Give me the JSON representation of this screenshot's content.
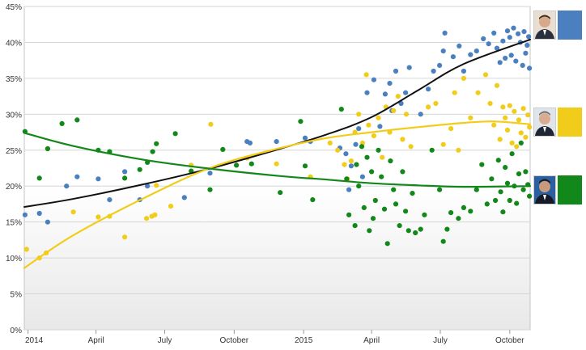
{
  "chart_data": {
    "type": "scatter",
    "title": "",
    "xlabel": "",
    "ylabel": "",
    "xlim": [
      "2013-12-27",
      "2015-10-28"
    ],
    "ylim": [
      0,
      45
    ],
    "y_ticks": [
      "0%",
      "5%",
      "10%",
      "15%",
      "20%",
      "25%",
      "30%",
      "35%",
      "40%",
      "45%"
    ],
    "x_ticks": [
      {
        "date": "2014-01-01",
        "label": "2014"
      },
      {
        "date": "2014-04-01",
        "label": "April"
      },
      {
        "date": "2014-07-01",
        "label": "July"
      },
      {
        "date": "2014-10-01",
        "label": "October"
      },
      {
        "date": "2015-01-01",
        "label": "2015"
      },
      {
        "date": "2015-04-01",
        "label": "April"
      },
      {
        "date": "2015-07-01",
        "label": "July"
      },
      {
        "date": "2015-10-01",
        "label": "October"
      }
    ],
    "grid": true,
    "legend_position": "right",
    "series": [
      {
        "color": "#4a7fc0",
        "icon": "candidate-portrait-icon",
        "trend": [
          [
            "2013-12-27",
            17.1
          ],
          [
            "2014-03-01",
            18.2
          ],
          [
            "2014-06-01",
            20.2
          ],
          [
            "2014-09-01",
            22.5
          ],
          [
            "2014-12-01",
            25.2
          ],
          [
            "2015-02-01",
            27.2
          ],
          [
            "2015-04-01",
            29.6
          ],
          [
            "2015-06-01",
            33.3
          ],
          [
            "2015-08-01",
            37.0
          ],
          [
            "2015-10-28",
            40.4
          ]
        ],
        "points": [
          [
            "2013-12-28",
            16
          ],
          [
            "2014-01-16",
            16.2
          ],
          [
            "2014-01-27",
            15
          ],
          [
            "2014-02-21",
            20
          ],
          [
            "2014-03-07",
            21.3
          ],
          [
            "2014-04-04",
            21
          ],
          [
            "2014-04-19",
            18.1
          ],
          [
            "2014-05-09",
            22
          ],
          [
            "2014-05-29",
            18.1
          ],
          [
            "2014-06-08",
            20
          ],
          [
            "2014-07-27",
            18.4
          ],
          [
            "2014-08-30",
            21.8
          ],
          [
            "2014-10-18",
            26.2
          ],
          [
            "2014-10-22",
            26
          ],
          [
            "2014-11-26",
            26.2
          ],
          [
            "2015-01-03",
            26.7
          ],
          [
            "2015-01-10",
            26.2
          ],
          [
            "2015-02-18",
            25.3
          ],
          [
            "2015-02-26",
            24.5
          ],
          [
            "2015-03-02",
            19.5
          ],
          [
            "2015-03-05",
            22.8
          ],
          [
            "2015-03-11",
            25.8
          ],
          [
            "2015-03-15",
            28
          ],
          [
            "2015-03-20",
            21.3
          ],
          [
            "2015-03-26",
            33
          ],
          [
            "2015-04-04",
            34.8
          ],
          [
            "2015-04-12",
            28.3
          ],
          [
            "2015-04-19",
            32.8
          ],
          [
            "2015-04-25",
            34.3
          ],
          [
            "2015-04-28",
            30.5
          ],
          [
            "2015-05-03",
            36
          ],
          [
            "2015-05-10",
            31.5
          ],
          [
            "2015-05-16",
            33
          ],
          [
            "2015-05-21",
            36.5
          ],
          [
            "2015-06-05",
            30
          ],
          [
            "2015-06-15",
            33.5
          ],
          [
            "2015-06-22",
            36
          ],
          [
            "2015-06-30",
            36.8
          ],
          [
            "2015-07-05",
            38.8
          ],
          [
            "2015-07-07",
            41.3
          ],
          [
            "2015-07-18",
            38
          ],
          [
            "2015-07-26",
            39.5
          ],
          [
            "2015-08-01",
            36
          ],
          [
            "2015-08-10",
            38.3
          ],
          [
            "2015-08-18",
            38.8
          ],
          [
            "2015-08-27",
            40.5
          ],
          [
            "2015-09-03",
            39.8
          ],
          [
            "2015-09-10",
            41.3
          ],
          [
            "2015-09-14",
            39.2
          ],
          [
            "2015-09-18",
            37.2
          ],
          [
            "2015-09-22",
            40.2
          ],
          [
            "2015-09-25",
            37.8
          ],
          [
            "2015-09-28",
            41.6
          ],
          [
            "2015-10-01",
            40.7
          ],
          [
            "2015-10-03",
            38.2
          ],
          [
            "2015-10-06",
            42
          ],
          [
            "2015-10-09",
            37.4
          ],
          [
            "2015-10-12",
            41.2
          ],
          [
            "2015-10-15",
            40
          ],
          [
            "2015-10-18",
            36.8
          ],
          [
            "2015-10-20",
            41.5
          ],
          [
            "2015-10-22",
            38.5
          ],
          [
            "2015-10-24",
            39.6
          ],
          [
            "2015-10-26",
            40.8
          ],
          [
            "2015-10-27",
            36.4
          ]
        ]
      },
      {
        "color": "#f2cc1a",
        "icon": "candidate-portrait-icon",
        "trend": [
          [
            "2013-12-27",
            8.6
          ],
          [
            "2014-03-01",
            13.1
          ],
          [
            "2014-06-01",
            18.2
          ],
          [
            "2014-09-01",
            22.6
          ],
          [
            "2014-12-01",
            25.3
          ],
          [
            "2015-02-01",
            26.7
          ],
          [
            "2015-04-01",
            27.5
          ],
          [
            "2015-06-01",
            28.2
          ],
          [
            "2015-08-01",
            28.8
          ],
          [
            "2015-09-10",
            29.0
          ],
          [
            "2015-10-28",
            28.6
          ]
        ],
        "points": [
          [
            "2013-12-30",
            11.2
          ],
          [
            "2014-01-16",
            10
          ],
          [
            "2014-01-25",
            10.7
          ],
          [
            "2014-03-02",
            16.4
          ],
          [
            "2014-04-04",
            15.7
          ],
          [
            "2014-04-19",
            15.8
          ],
          [
            "2014-05-09",
            12.9
          ],
          [
            "2014-06-07",
            15.5
          ],
          [
            "2014-06-14",
            15.8
          ],
          [
            "2014-06-18",
            16
          ],
          [
            "2014-06-20",
            20.1
          ],
          [
            "2014-07-09",
            17.2
          ],
          [
            "2014-08-05",
            22.9
          ],
          [
            "2014-08-31",
            28.6
          ],
          [
            "2014-10-18",
            23.9
          ],
          [
            "2014-11-26",
            23.1
          ],
          [
            "2015-01-10",
            21.3
          ],
          [
            "2015-02-05",
            26
          ],
          [
            "2015-02-15",
            25
          ],
          [
            "2015-02-24",
            23
          ],
          [
            "2015-02-28",
            21
          ],
          [
            "2015-03-05",
            23.5
          ],
          [
            "2015-03-10",
            27.5
          ],
          [
            "2015-03-15",
            30
          ],
          [
            "2015-03-20",
            26
          ],
          [
            "2015-03-25",
            35.5
          ],
          [
            "2015-03-28",
            28.5
          ],
          [
            "2015-04-04",
            27
          ],
          [
            "2015-04-10",
            29.5
          ],
          [
            "2015-04-15",
            24
          ],
          [
            "2015-04-20",
            31
          ],
          [
            "2015-04-25",
            27.5
          ],
          [
            "2015-04-30",
            30.5
          ],
          [
            "2015-05-06",
            32.5
          ],
          [
            "2015-05-12",
            26.5
          ],
          [
            "2015-05-17",
            30
          ],
          [
            "2015-05-23",
            25.5
          ],
          [
            "2015-06-15",
            31
          ],
          [
            "2015-06-25",
            31.5
          ],
          [
            "2015-07-05",
            25.8
          ],
          [
            "2015-07-15",
            28
          ],
          [
            "2015-07-20",
            33
          ],
          [
            "2015-07-25",
            25
          ],
          [
            "2015-08-01",
            35
          ],
          [
            "2015-08-10",
            29.5
          ],
          [
            "2015-08-20",
            33
          ],
          [
            "2015-08-30",
            35.5
          ],
          [
            "2015-09-05",
            31.5
          ],
          [
            "2015-09-10",
            28.5
          ],
          [
            "2015-09-14",
            34
          ],
          [
            "2015-09-18",
            26.5
          ],
          [
            "2015-09-22",
            31
          ],
          [
            "2015-09-25",
            29.5
          ],
          [
            "2015-09-28",
            27.8
          ],
          [
            "2015-10-01",
            31.2
          ],
          [
            "2015-10-04",
            26
          ],
          [
            "2015-10-07",
            30.4
          ],
          [
            "2015-10-10",
            25.5
          ],
          [
            "2015-10-13",
            29.2
          ],
          [
            "2015-10-16",
            27.4
          ],
          [
            "2015-10-19",
            30.8
          ],
          [
            "2015-10-22",
            26.8
          ],
          [
            "2015-10-25",
            29.9
          ],
          [
            "2015-10-27",
            28.2
          ]
        ]
      },
      {
        "color": "#13881a",
        "icon": "candidate-portrait-icon",
        "trend": [
          [
            "2013-12-27",
            27.4
          ],
          [
            "2014-03-01",
            25.6
          ],
          [
            "2014-06-01",
            23.7
          ],
          [
            "2014-09-01",
            22.4
          ],
          [
            "2014-12-01",
            21.4
          ],
          [
            "2015-02-01",
            20.9
          ],
          [
            "2015-04-01",
            20.4
          ],
          [
            "2015-06-01",
            20.1
          ],
          [
            "2015-08-01",
            19.9
          ],
          [
            "2015-10-28",
            20.0
          ]
        ],
        "points": [
          [
            "2013-12-28",
            27.6
          ],
          [
            "2014-01-16",
            21.1
          ],
          [
            "2014-01-27",
            25.2
          ],
          [
            "2014-02-15",
            28.7
          ],
          [
            "2014-03-07",
            29.2
          ],
          [
            "2014-04-04",
            25
          ],
          [
            "2014-04-19",
            24.8
          ],
          [
            "2014-05-09",
            21.1
          ],
          [
            "2014-05-29",
            22.3
          ],
          [
            "2014-06-08",
            23.3
          ],
          [
            "2014-06-15",
            24.8
          ],
          [
            "2014-06-20",
            25.9
          ],
          [
            "2014-07-15",
            27.3
          ],
          [
            "2014-08-05",
            22.1
          ],
          [
            "2014-08-30",
            19.5
          ],
          [
            "2014-09-16",
            25.1
          ],
          [
            "2014-10-04",
            22.9
          ],
          [
            "2014-10-24",
            23.1
          ],
          [
            "2014-12-01",
            19.1
          ],
          [
            "2014-12-28",
            29
          ],
          [
            "2015-01-03",
            22.8
          ],
          [
            "2015-01-13",
            18.1
          ],
          [
            "2015-02-20",
            30.7
          ],
          [
            "2015-02-27",
            21
          ],
          [
            "2015-03-02",
            16
          ],
          [
            "2015-03-10",
            14.5
          ],
          [
            "2015-03-12",
            23
          ],
          [
            "2015-03-15",
            20
          ],
          [
            "2015-03-19",
            25.5
          ],
          [
            "2015-03-22",
            17
          ],
          [
            "2015-03-26",
            24
          ],
          [
            "2015-03-29",
            13.8
          ],
          [
            "2015-04-01",
            22
          ],
          [
            "2015-04-03",
            15.5
          ],
          [
            "2015-04-06",
            18
          ],
          [
            "2015-04-10",
            25
          ],
          [
            "2015-04-14",
            21.3
          ],
          [
            "2015-04-18",
            16.8
          ],
          [
            "2015-04-22",
            12
          ],
          [
            "2015-04-26",
            23.5
          ],
          [
            "2015-04-30",
            19.5
          ],
          [
            "2015-05-03",
            17.5
          ],
          [
            "2015-05-08",
            14.5
          ],
          [
            "2015-05-12",
            22
          ],
          [
            "2015-05-16",
            16.5
          ],
          [
            "2015-05-20",
            13.8
          ],
          [
            "2015-05-25",
            19
          ],
          [
            "2015-05-29",
            13.5
          ],
          [
            "2015-06-05",
            14
          ],
          [
            "2015-06-10",
            16
          ],
          [
            "2015-06-20",
            25
          ],
          [
            "2015-06-30",
            19.5
          ],
          [
            "2015-07-05",
            12.3
          ],
          [
            "2015-07-10",
            14
          ],
          [
            "2015-07-15",
            16.3
          ],
          [
            "2015-07-25",
            15.5
          ],
          [
            "2015-08-01",
            17
          ],
          [
            "2015-08-10",
            16.5
          ],
          [
            "2015-08-18",
            19.5
          ],
          [
            "2015-08-25",
            23
          ],
          [
            "2015-09-01",
            17.5
          ],
          [
            "2015-09-07",
            21
          ],
          [
            "2015-09-12",
            18
          ],
          [
            "2015-09-16",
            23.6
          ],
          [
            "2015-09-19",
            19.2
          ],
          [
            "2015-09-22",
            16.4
          ],
          [
            "2015-09-25",
            22.6
          ],
          [
            "2015-09-28",
            20.4
          ],
          [
            "2015-10-01",
            18
          ],
          [
            "2015-10-04",
            24.5
          ],
          [
            "2015-10-07",
            20
          ],
          [
            "2015-10-10",
            17.6
          ],
          [
            "2015-10-13",
            21.7
          ],
          [
            "2015-10-16",
            26
          ],
          [
            "2015-10-19",
            19.5
          ],
          [
            "2015-10-22",
            22
          ],
          [
            "2015-10-25",
            20.2
          ],
          [
            "2015-10-27",
            18.6
          ]
        ]
      }
    ]
  }
}
